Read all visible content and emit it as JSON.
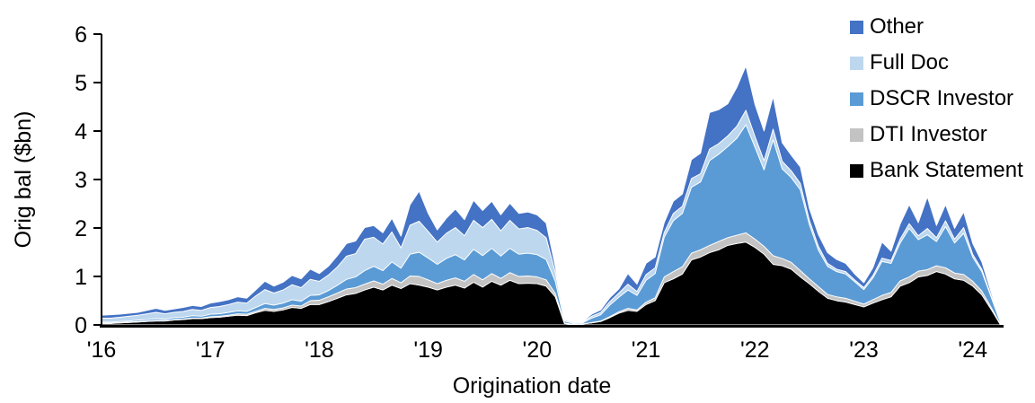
{
  "chart_data": {
    "type": "area",
    "stacked": true,
    "title": "",
    "xlabel": "Origination date",
    "ylabel": "Orig bal ($bn)",
    "ylim": [
      0,
      6
    ],
    "yticks": [
      0,
      1,
      2,
      3,
      4,
      5,
      6
    ],
    "xtick_labels": [
      "'16",
      "'17",
      "'18",
      "'19",
      "'20",
      "'21",
      "'22",
      "'23",
      "'24"
    ],
    "x_start": "2016-01",
    "x_end": "2024-04",
    "x_interval": "month",
    "grid": false,
    "legend_position": "top-right",
    "legend_order": [
      "Other",
      "Full Doc",
      "DSCR Investor",
      "DTI Investor",
      "Bank Statement"
    ],
    "series": [
      {
        "name": "Bank Statement",
        "color": "#000000",
        "values": [
          0.03,
          0.03,
          0.04,
          0.05,
          0.06,
          0.07,
          0.08,
          0.08,
          0.1,
          0.11,
          0.13,
          0.13,
          0.15,
          0.16,
          0.18,
          0.2,
          0.19,
          0.25,
          0.3,
          0.28,
          0.31,
          0.36,
          0.34,
          0.42,
          0.42,
          0.48,
          0.55,
          0.62,
          0.65,
          0.72,
          0.78,
          0.72,
          0.82,
          0.75,
          0.85,
          0.82,
          0.78,
          0.72,
          0.78,
          0.82,
          0.76,
          0.88,
          0.78,
          0.9,
          0.82,
          0.92,
          0.85,
          0.86,
          0.85,
          0.8,
          0.58,
          0.03,
          0.01,
          0.02,
          0.04,
          0.07,
          0.15,
          0.24,
          0.3,
          0.28,
          0.42,
          0.5,
          0.87,
          0.95,
          1.05,
          1.34,
          1.4,
          1.49,
          1.55,
          1.64,
          1.68,
          1.71,
          1.6,
          1.46,
          1.25,
          1.22,
          1.15,
          0.99,
          0.85,
          0.69,
          0.55,
          0.5,
          0.47,
          0.42,
          0.37,
          0.45,
          0.52,
          0.58,
          0.8,
          0.87,
          0.99,
          1.02,
          1.1,
          1.05,
          0.95,
          0.92,
          0.8,
          0.62,
          0.33,
          0.02
        ]
      },
      {
        "name": "DTI Investor",
        "color": "#C3C3C3",
        "values": [
          0.01,
          0.01,
          0.01,
          0.01,
          0.01,
          0.01,
          0.01,
          0.01,
          0.01,
          0.01,
          0.01,
          0.01,
          0.02,
          0.02,
          0.02,
          0.03,
          0.03,
          0.03,
          0.04,
          0.04,
          0.04,
          0.05,
          0.05,
          0.08,
          0.09,
          0.1,
          0.11,
          0.12,
          0.12,
          0.12,
          0.13,
          0.12,
          0.14,
          0.12,
          0.16,
          0.18,
          0.15,
          0.13,
          0.14,
          0.15,
          0.14,
          0.16,
          0.15,
          0.16,
          0.14,
          0.16,
          0.15,
          0.15,
          0.14,
          0.13,
          0.07,
          0.01,
          0.0,
          0.0,
          0.01,
          0.01,
          0.02,
          0.03,
          0.04,
          0.03,
          0.05,
          0.06,
          0.12,
          0.15,
          0.15,
          0.14,
          0.15,
          0.15,
          0.17,
          0.16,
          0.17,
          0.19,
          0.17,
          0.16,
          0.18,
          0.15,
          0.14,
          0.13,
          0.1,
          0.1,
          0.08,
          0.08,
          0.08,
          0.07,
          0.06,
          0.07,
          0.09,
          0.09,
          0.11,
          0.12,
          0.12,
          0.12,
          0.12,
          0.13,
          0.12,
          0.12,
          0.1,
          0.08,
          0.04,
          0.01
        ]
      },
      {
        "name": "DSCR Investor",
        "color": "#5B9BD5",
        "values": [
          0.02,
          0.02,
          0.02,
          0.02,
          0.03,
          0.03,
          0.04,
          0.03,
          0.04,
          0.04,
          0.05,
          0.04,
          0.05,
          0.05,
          0.06,
          0.06,
          0.06,
          0.08,
          0.1,
          0.09,
          0.1,
          0.11,
          0.1,
          0.11,
          0.11,
          0.13,
          0.16,
          0.2,
          0.22,
          0.28,
          0.3,
          0.28,
          0.34,
          0.3,
          0.45,
          0.5,
          0.45,
          0.4,
          0.45,
          0.48,
          0.44,
          0.52,
          0.5,
          0.52,
          0.46,
          0.5,
          0.46,
          0.47,
          0.46,
          0.42,
          0.25,
          0.04,
          0.02,
          0.02,
          0.09,
          0.13,
          0.24,
          0.3,
          0.38,
          0.3,
          0.45,
          0.5,
          0.82,
          1.05,
          1.1,
          1.36,
          1.4,
          1.75,
          1.8,
          1.88,
          2.0,
          2.23,
          1.9,
          1.58,
          2.39,
          1.85,
          1.75,
          1.67,
          1.12,
          0.75,
          0.58,
          0.52,
          0.5,
          0.4,
          0.3,
          0.45,
          0.7,
          0.6,
          0.78,
          1.0,
          0.65,
          0.72,
          0.5,
          0.85,
          0.62,
          0.85,
          0.5,
          0.4,
          0.22,
          0.05
        ]
      },
      {
        "name": "Full Doc",
        "color": "#BDD7EE",
        "values": [
          0.08,
          0.08,
          0.09,
          0.1,
          0.1,
          0.12,
          0.13,
          0.11,
          0.11,
          0.12,
          0.13,
          0.12,
          0.14,
          0.15,
          0.16,
          0.18,
          0.17,
          0.24,
          0.29,
          0.25,
          0.27,
          0.31,
          0.28,
          0.33,
          0.28,
          0.32,
          0.38,
          0.48,
          0.48,
          0.65,
          0.6,
          0.55,
          0.62,
          0.42,
          0.6,
          0.64,
          0.55,
          0.46,
          0.52,
          0.56,
          0.5,
          0.6,
          0.58,
          0.6,
          0.52,
          0.58,
          0.52,
          0.53,
          0.5,
          0.45,
          0.19,
          0.03,
          0.02,
          0.02,
          0.04,
          0.05,
          0.07,
          0.09,
          0.12,
          0.08,
          0.12,
          0.12,
          0.1,
          0.15,
          0.15,
          0.18,
          0.17,
          0.24,
          0.22,
          0.22,
          0.25,
          0.3,
          0.22,
          0.19,
          0.22,
          0.16,
          0.14,
          0.13,
          0.09,
          0.08,
          0.06,
          0.05,
          0.05,
          0.04,
          0.04,
          0.05,
          0.07,
          0.06,
          0.08,
          0.1,
          0.08,
          0.13,
          0.08,
          0.12,
          0.08,
          0.12,
          0.06,
          0.05,
          0.03,
          0.01
        ]
      },
      {
        "name": "Other",
        "color": "#4472C4",
        "values": [
          0.06,
          0.07,
          0.06,
          0.06,
          0.06,
          0.07,
          0.08,
          0.07,
          0.07,
          0.08,
          0.08,
          0.08,
          0.09,
          0.1,
          0.1,
          0.11,
          0.1,
          0.12,
          0.17,
          0.14,
          0.16,
          0.19,
          0.18,
          0.21,
          0.16,
          0.18,
          0.23,
          0.26,
          0.26,
          0.24,
          0.24,
          0.23,
          0.28,
          0.24,
          0.42,
          0.62,
          0.37,
          0.25,
          0.31,
          0.38,
          0.33,
          0.41,
          0.35,
          0.37,
          0.33,
          0.35,
          0.32,
          0.32,
          0.32,
          0.3,
          0.11,
          0.02,
          0.01,
          0.01,
          0.04,
          0.05,
          0.08,
          0.08,
          0.22,
          0.15,
          0.23,
          0.22,
          0.2,
          0.25,
          0.25,
          0.39,
          0.42,
          0.75,
          0.7,
          0.66,
          0.8,
          0.91,
          0.66,
          0.61,
          0.67,
          0.38,
          0.32,
          0.34,
          0.24,
          0.24,
          0.22,
          0.2,
          0.17,
          0.12,
          0.1,
          0.16,
          0.33,
          0.19,
          0.31,
          0.39,
          0.27,
          0.65,
          0.25,
          0.33,
          0.22,
          0.32,
          0.22,
          0.15,
          0.07,
          0.01
        ]
      }
    ]
  }
}
